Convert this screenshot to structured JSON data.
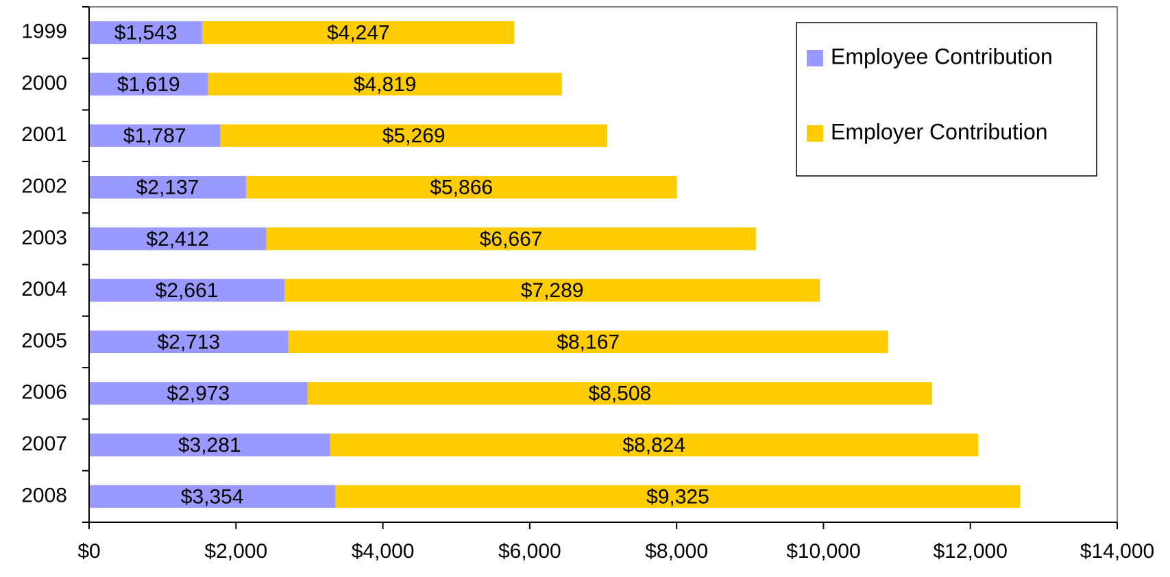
{
  "chart_data": {
    "type": "stacked-barh",
    "categories": [
      "1999",
      "2000",
      "2001",
      "2002",
      "2003",
      "2004",
      "2005",
      "2006",
      "2007",
      "2008"
    ],
    "series": [
      {
        "name": "Employee Contribution",
        "color": "#9999ff",
        "values": [
          1543,
          1619,
          1787,
          2137,
          2412,
          2661,
          2713,
          2973,
          3281,
          3354
        ],
        "value_labels": [
          "$1,543",
          "$1,619",
          "$1,787",
          "$2,137",
          "$2,412",
          "$2,661",
          "$2,713",
          "$2,973",
          "$3,281",
          "$3,354"
        ]
      },
      {
        "name": "Employer Contribution",
        "color": "#ffcc00",
        "values": [
          4247,
          4819,
          5269,
          5866,
          6667,
          7289,
          8167,
          8508,
          8824,
          9325
        ],
        "value_labels": [
          "$4,247",
          "$4,819",
          "$5,269",
          "$5,866",
          "$6,667",
          "$7,289",
          "$8,167",
          "$8,508",
          "$8,824",
          "$9,325"
        ]
      }
    ],
    "xlim": [
      0,
      14000
    ],
    "xticks": [
      {
        "value": 0,
        "label": "$0"
      },
      {
        "value": 2000,
        "label": "$2,000"
      },
      {
        "value": 4000,
        "label": "$4,000"
      },
      {
        "value": 6000,
        "label": "$6,000"
      },
      {
        "value": 8000,
        "label": "$8,000"
      },
      {
        "value": 10000,
        "label": "$10,000"
      },
      {
        "value": 12000,
        "label": "$12,000"
      },
      {
        "value": 14000,
        "label": "$14,000"
      }
    ],
    "legend": "upper right"
  }
}
